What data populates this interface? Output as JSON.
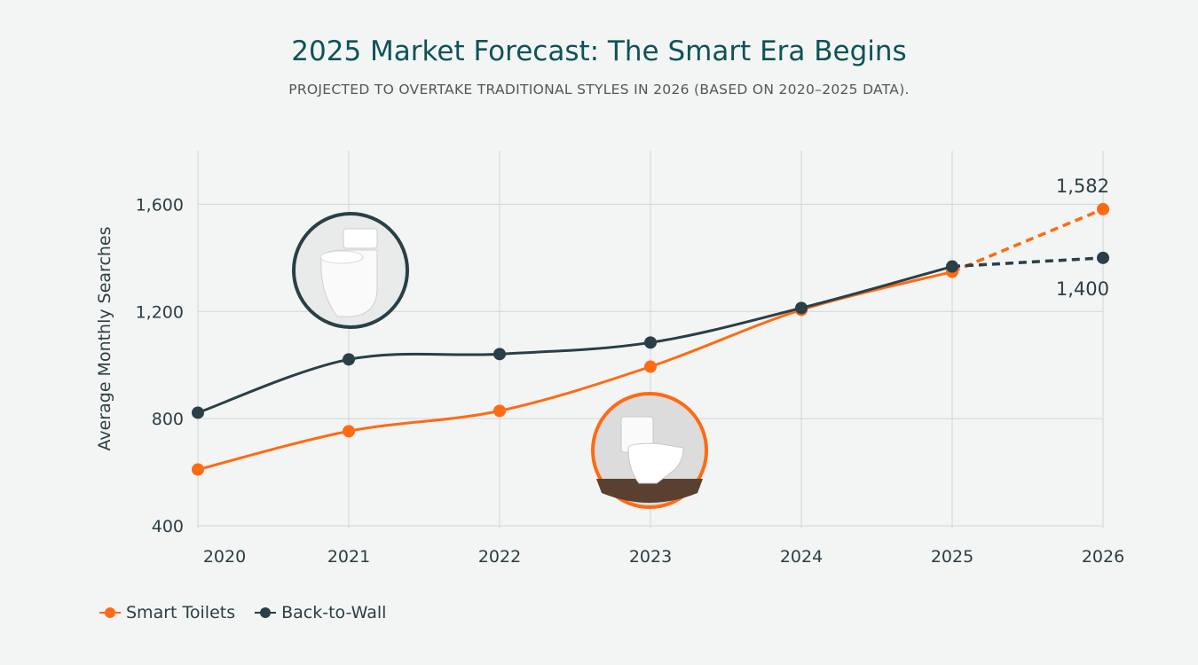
{
  "chart_data": {
    "type": "line",
    "title": "2025 Market Forecast: The Smart Era Begins",
    "subtitle": "PROJECTED TO OVERTAKE TRADITIONAL STYLES IN 2026 (BASED ON 2020–2025 DATA).",
    "xlabel": "",
    "ylabel": "Average Monthly Searches",
    "x": [
      "2020",
      "2021",
      "2022",
      "2023",
      "2024",
      "2025",
      "2026"
    ],
    "yticks": [
      400,
      800,
      1200,
      1600
    ],
    "ytick_labels": [
      "400",
      "800",
      "1,200",
      "1,600"
    ],
    "ylim": [
      390,
      1800
    ],
    "grid": true,
    "legend_position": "bottom-left",
    "series": [
      {
        "name": "Smart Toilets",
        "color": "#ff6a13",
        "values": [
          610,
          753,
          829,
          994,
          1206,
          1348,
          1582
        ],
        "forecast_from_index": 5,
        "end_label": "1,582"
      },
      {
        "name": "Back-to-Wall",
        "color": "#2a3f47",
        "values": [
          822,
          1021,
          1041,
          1084,
          1213,
          1368,
          1400
        ],
        "forecast_from_index": 5,
        "end_label": "1,400"
      }
    ]
  }
}
